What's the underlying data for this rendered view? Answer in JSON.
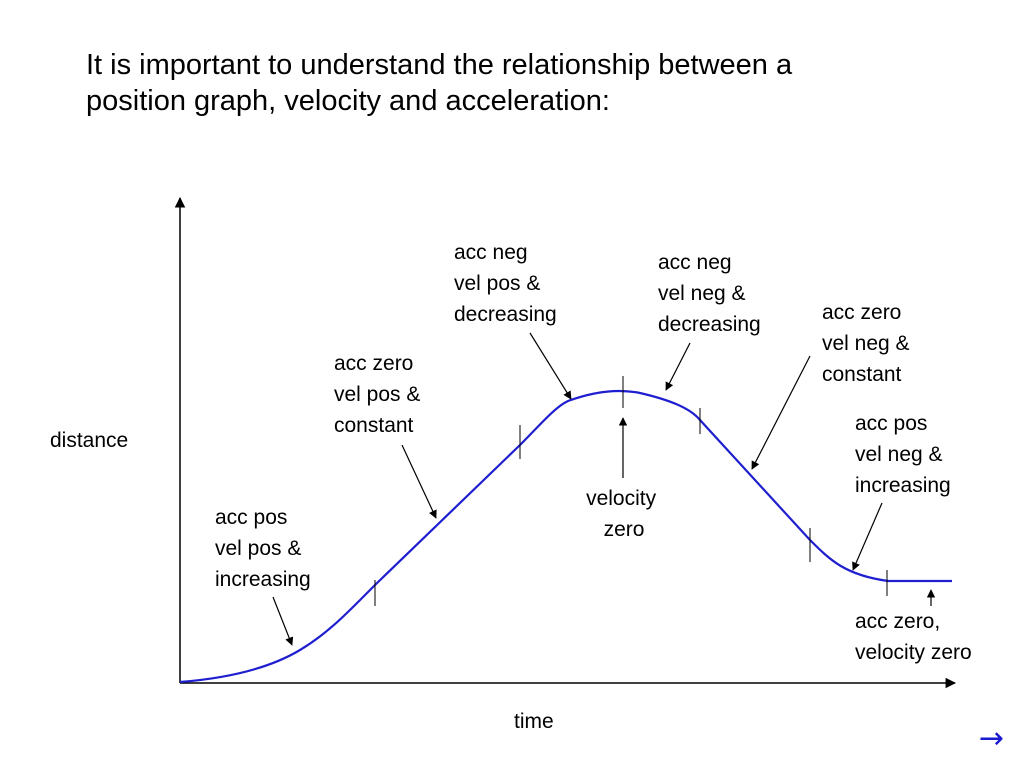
{
  "slide": {
    "title_lines": [
      "It is important to understand the relationship between a",
      "position graph, velocity and acceleration:"
    ]
  },
  "axes": {
    "x_label": "time",
    "y_label": "distance"
  },
  "annotations": [
    {
      "id": "segment-1",
      "lines": [
        "acc pos",
        "vel pos &",
        "increasing"
      ]
    },
    {
      "id": "segment-2",
      "lines": [
        "acc zero",
        "vel pos &",
        "constant"
      ]
    },
    {
      "id": "segment-3",
      "lines": [
        "acc neg",
        "vel pos &",
        "decreasing"
      ]
    },
    {
      "id": "peak",
      "lines": [
        "velocity",
        "zero"
      ]
    },
    {
      "id": "segment-4",
      "lines": [
        "acc neg",
        "vel neg &",
        "decreasing"
      ]
    },
    {
      "id": "segment-5",
      "lines": [
        "acc zero",
        "vel neg &",
        "constant"
      ]
    },
    {
      "id": "segment-6",
      "lines": [
        "acc pos",
        "vel neg &",
        "increasing"
      ]
    },
    {
      "id": "segment-7",
      "lines": [
        "acc zero,",
        "velocity zero"
      ]
    }
  ],
  "colors": {
    "curve": "#1f1fd0",
    "axes": "#000000",
    "next_arrow": "#1a1ad0"
  },
  "navigation": {
    "next_icon": "→"
  }
}
